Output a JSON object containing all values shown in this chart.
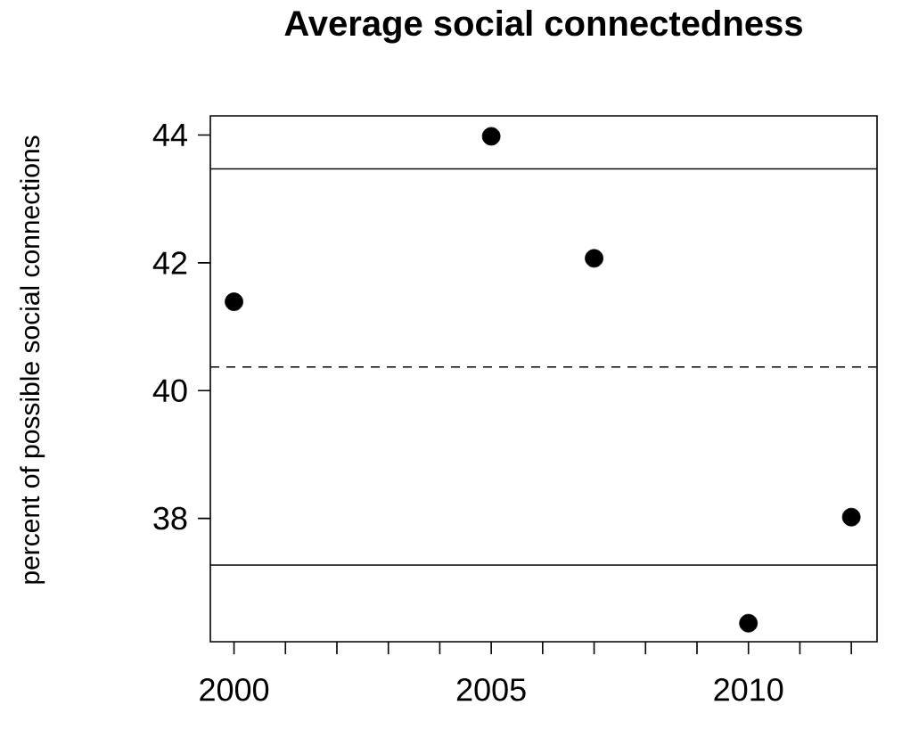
{
  "chart_data": {
    "type": "scatter",
    "title": "Average social connectedness",
    "ylabel": "percent of possible social connections",
    "x": [
      2000,
      2005,
      2007,
      2010,
      2012
    ],
    "values": [
      41.39,
      43.98,
      42.07,
      36.36,
      38.02
    ],
    "color": "#000000",
    "marker": "circle",
    "xlim": [
      1999.54,
      2012.5
    ],
    "ylim": [
      36.07,
      44.3
    ],
    "xticks": [
      2000,
      {
        "value": 2001,
        "label": null
      },
      {
        "value": 2002,
        "label": null
      },
      {
        "value": 2003,
        "label": null
      },
      {
        "value": 2004,
        "label": null
      },
      2005,
      {
        "value": 2006,
        "label": null
      },
      {
        "value": 2007,
        "label": null
      },
      {
        "value": 2008,
        "label": null
      },
      {
        "value": 2009,
        "label": null
      },
      2010,
      {
        "value": 2011,
        "label": null
      },
      {
        "value": 2012,
        "label": null
      }
    ],
    "yticks": [
      38,
      40,
      42,
      44
    ],
    "ref_lines": [
      {
        "axis": "y",
        "value": 43.47,
        "line_style": "solid"
      },
      {
        "axis": "y",
        "value": 40.37,
        "line_style": "dashed"
      },
      {
        "axis": "y",
        "value": 37.27,
        "line_style": "solid"
      }
    ],
    "grid": false
  }
}
